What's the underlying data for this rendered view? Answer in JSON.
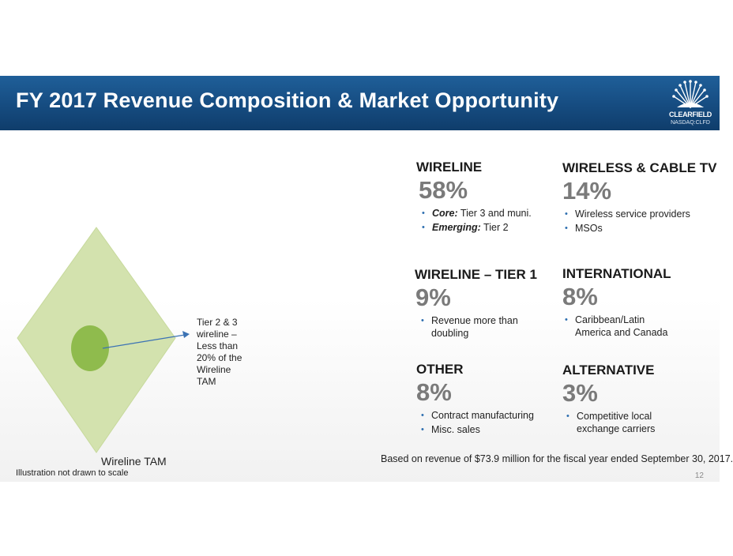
{
  "header": {
    "title": "FY 2017 Revenue Composition & Market Opportunity",
    "logo_name": "CLEARFIELD",
    "logo_ticker": "NASDAQ:CLFD"
  },
  "diagram": {
    "tam_label": "Wireline TAM",
    "callout": "Tier 2 & 3 wireline – Less than 20% of the Wireline TAM",
    "scale_note": "Illustration not drawn to scale",
    "colors": {
      "diamond": "#d3e2ae",
      "circle": "#8fbb4d",
      "arrow": "#3c73b4"
    }
  },
  "segments": {
    "wireline": {
      "title": "WIRELINE",
      "pct": "58%",
      "bullets": [
        {
          "lead": "Core:",
          "text": " Tier 3 and muni."
        },
        {
          "lead": "Emerging:",
          "text": " Tier 2"
        }
      ]
    },
    "wireless": {
      "title": "WIRELESS & CABLE TV",
      "pct": "14%",
      "bullets": [
        {
          "text": "Wireless service providers"
        },
        {
          "text": "MSOs"
        }
      ]
    },
    "tier1": {
      "title": "WIRELINE – TIER 1",
      "pct": "9%",
      "bullets": [
        {
          "text": "Revenue more than doubling"
        }
      ]
    },
    "international": {
      "title": "INTERNATIONAL",
      "pct": "8%",
      "bullets": [
        {
          "text": "Caribbean/Latin America and Canada"
        }
      ]
    },
    "other": {
      "title": "OTHER",
      "pct": "8%",
      "bullets": [
        {
          "text": "Contract manufacturing"
        },
        {
          "text": "Misc. sales"
        }
      ]
    },
    "alternative": {
      "title": "ALTERNATIVE",
      "pct": "3%",
      "bullets": [
        {
          "text": "Competitive local exchange carriers"
        }
      ]
    }
  },
  "footer": {
    "note": "Based on revenue of $73.9 million for the fiscal year ended September 30, 2017.",
    "page_number": "12"
  }
}
